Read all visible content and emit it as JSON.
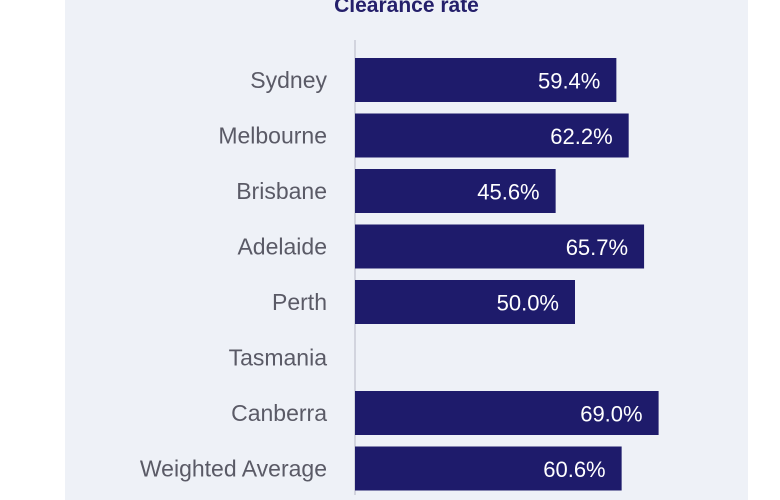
{
  "chart_data": {
    "type": "bar",
    "orientation": "horizontal",
    "title": "Clearance rate",
    "categories": [
      "Sydney",
      "Melbourne",
      "Brisbane",
      "Adelaide",
      "Perth",
      "Tasmania",
      "Canberra",
      "Weighted Average"
    ],
    "values": [
      59.4,
      62.2,
      45.6,
      65.7,
      50.0,
      null,
      69.0,
      60.6
    ],
    "value_labels": [
      "59.4%",
      "62.2%",
      "45.6%",
      "65.7%",
      "50.0%",
      "",
      "69.0%",
      "60.6%"
    ],
    "xlim": [
      0,
      100
    ],
    "grid": false,
    "legend": "none",
    "colors": {
      "bar": "#1e1b6b",
      "title": "#25206b",
      "background": "#eef1f7",
      "axis": "#c9cbd6"
    }
  }
}
